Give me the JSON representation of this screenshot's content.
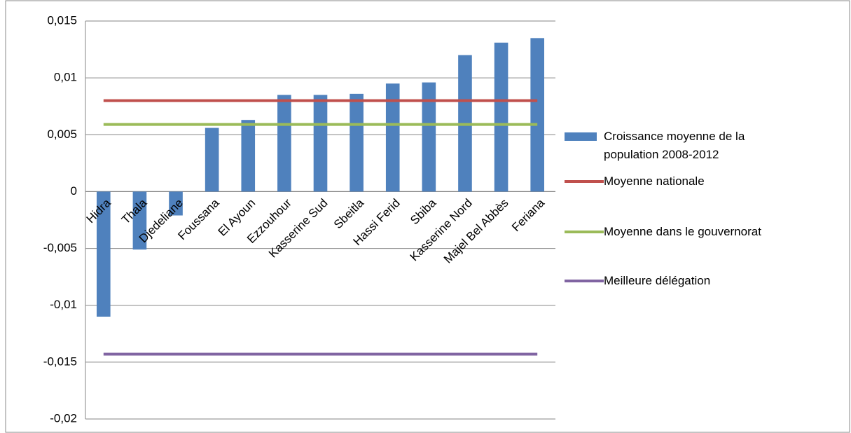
{
  "chart_data": {
    "type": "bar",
    "categories": [
      "Hidra",
      "Thala",
      "Djedeliane",
      "Foussana",
      "El Ayoun",
      "Ezzouhour",
      "Kasserine Sud",
      "Sbeitla",
      "Hassi Ferid",
      "Sbiba",
      "Kasserine Nord",
      "Majel Bel Abbès",
      "Feriana"
    ],
    "series": [
      {
        "name": "Croissance moyenne de la population 2008-2012",
        "type": "bar",
        "color": "#4f81bd",
        "values": [
          -0.011,
          -0.0051,
          -0.0021,
          0.0056,
          0.0063,
          0.0085,
          0.0085,
          0.0086,
          0.0095,
          0.0096,
          0.012,
          0.0131,
          0.0135
        ]
      },
      {
        "name": "Moyenne nationale",
        "type": "line",
        "color": "#c0504d",
        "values": [
          0.008,
          0.008,
          0.008,
          0.008,
          0.008,
          0.008,
          0.008,
          0.008,
          0.008,
          0.008,
          0.008,
          0.008,
          0.008
        ]
      },
      {
        "name": "Moyenne dans le gouvernorat",
        "type": "line",
        "color": "#9bbb59",
        "values": [
          0.0059,
          0.0059,
          0.0059,
          0.0059,
          0.0059,
          0.0059,
          0.0059,
          0.0059,
          0.0059,
          0.0059,
          0.0059,
          0.0059,
          0.0059
        ]
      },
      {
        "name": "Meilleure délégation",
        "type": "line",
        "color": "#8064a2",
        "values": [
          -0.0143,
          -0.0143,
          -0.0143,
          -0.0143,
          -0.0143,
          -0.0143,
          -0.0143,
          -0.0143,
          -0.0143,
          -0.0143,
          -0.0143,
          -0.0143,
          -0.0143
        ]
      }
    ],
    "ylim": [
      -0.02,
      0.015
    ],
    "yticks": [
      {
        "value": -0.02,
        "label": "-0,02"
      },
      {
        "value": -0.015,
        "label": "-0,015"
      },
      {
        "value": -0.01,
        "label": "-0,01"
      },
      {
        "value": -0.005,
        "label": "-0,005"
      },
      0,
      {
        "value": 0.005,
        "label": "0,005"
      },
      {
        "value": 0.01,
        "label": "0,01"
      },
      {
        "value": 0.015,
        "label": "0,015"
      }
    ],
    "grid": true
  }
}
